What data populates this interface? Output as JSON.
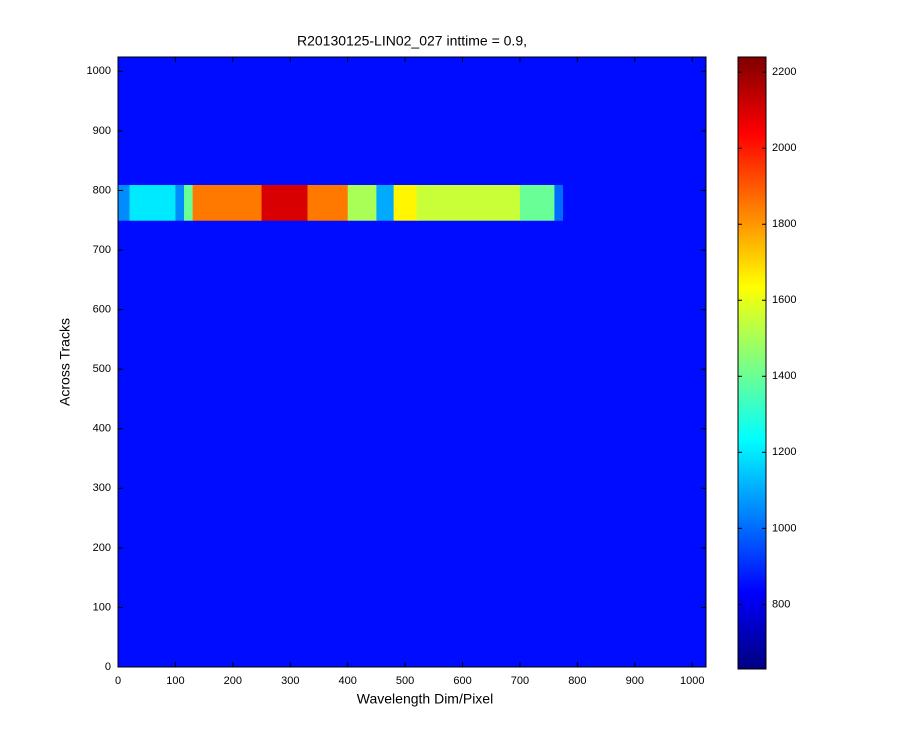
{
  "chart_data": {
    "type": "heatmap",
    "title": "R20130125-LIN02_027 inttime = 0.9,",
    "xlabel": "Wavelength Dim/Pixel",
    "ylabel": "Across Tracks",
    "xbins": [
      0,
      20,
      100,
      115,
      130,
      250,
      330,
      400,
      450,
      480,
      520,
      700,
      760,
      775,
      1024
    ],
    "ybins": [
      0,
      750,
      810,
      1024
    ],
    "values": [
      [
        850,
        850,
        850,
        850,
        850,
        850,
        850,
        850,
        850,
        850,
        850,
        850,
        850,
        850
      ],
      [
        1050,
        1200,
        1050,
        1400,
        1850,
        2100,
        1850,
        1500,
        1100,
        1650,
        1550,
        1400,
        1000,
        850
      ],
      [
        850,
        850,
        850,
        850,
        850,
        850,
        850,
        850,
        850,
        850,
        850,
        850,
        850,
        850
      ]
    ],
    "colormap": "jet",
    "clim": [
      630,
      2240
    ],
    "cticks": [
      800,
      1000,
      1200,
      1400,
      1600,
      1800,
      2000,
      2200
    ],
    "xlim": [
      0,
      1024
    ],
    "ylim": [
      0,
      1024
    ],
    "xticks": [
      0,
      100,
      200,
      300,
      400,
      500,
      600,
      700,
      800,
      900,
      1000
    ],
    "yticks": [
      0,
      100,
      200,
      300,
      400,
      500,
      600,
      700,
      800,
      900,
      1000
    ]
  }
}
